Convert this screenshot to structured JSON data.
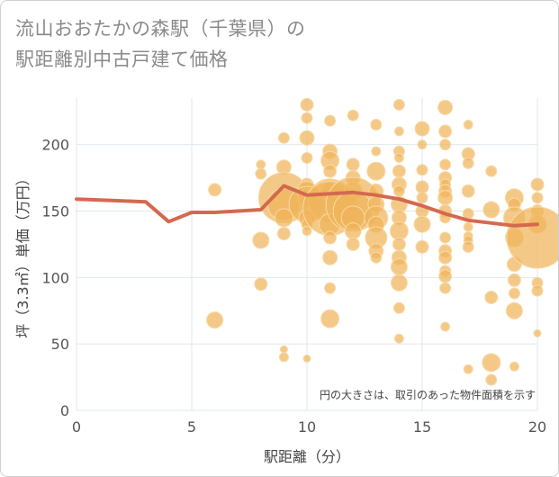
{
  "title": {
    "line1": "流山おおたかの森駅（千葉県）の",
    "line2": "駅距離別中古戸建て価格"
  },
  "note": "円の大きさは、取引のあった物件面積を示す",
  "colors": {
    "bubble": "#f0b45a",
    "bubble_stroke": "#f8d9a6",
    "line": "#d4694f",
    "plot_bg": "#ffffff",
    "grid": "#dfe7ee",
    "axis_text": "#555555"
  },
  "chart_data": {
    "type": "scatter",
    "xlabel": "駅距離（分）",
    "ylabel": "坪（3.3㎡）単価（万円）",
    "xlim": [
      0,
      20
    ],
    "ylim": [
      0,
      235
    ],
    "xticks": [
      0,
      5,
      10,
      15,
      20
    ],
    "yticks": [
      0,
      50,
      100,
      150,
      200
    ],
    "grid": true,
    "legend": "none",
    "series": [
      {
        "type": "line",
        "values": [
          [
            0,
            159
          ],
          [
            3,
            157
          ],
          [
            4,
            142
          ],
          [
            5,
            149
          ],
          [
            6,
            149
          ],
          [
            8,
            151
          ],
          [
            9,
            169
          ],
          [
            10,
            162
          ],
          [
            11,
            163
          ],
          [
            12,
            164
          ],
          [
            13,
            162
          ],
          [
            14,
            159
          ],
          [
            15,
            154
          ],
          [
            16,
            148
          ],
          [
            17,
            143
          ],
          [
            18,
            141
          ],
          [
            19,
            139
          ],
          [
            20,
            140
          ]
        ]
      },
      {
        "type": "bubble",
        "points": [
          [
            6,
            166,
            7
          ],
          [
            6,
            68,
            9
          ],
          [
            8,
            185,
            5
          ],
          [
            8,
            178,
            6
          ],
          [
            8,
            128,
            9
          ],
          [
            8,
            95,
            7
          ],
          [
            9,
            205,
            6
          ],
          [
            9,
            183,
            8
          ],
          [
            9,
            160,
            28
          ],
          [
            9,
            155,
            18
          ],
          [
            9,
            145,
            10
          ],
          [
            9,
            133,
            7
          ],
          [
            9,
            46,
            4
          ],
          [
            9,
            40,
            5
          ],
          [
            10,
            230,
            7
          ],
          [
            10,
            220,
            6
          ],
          [
            10,
            205,
            8
          ],
          [
            10,
            190,
            6
          ],
          [
            10,
            170,
            7
          ],
          [
            10,
            165,
            11
          ],
          [
            10,
            160,
            10
          ],
          [
            10,
            155,
            20
          ],
          [
            10,
            145,
            9
          ],
          [
            10,
            140,
            6
          ],
          [
            10,
            135,
            5
          ],
          [
            10,
            39,
            4
          ],
          [
            11,
            218,
            6
          ],
          [
            11,
            195,
            8
          ],
          [
            11,
            188,
            10
          ],
          [
            11,
            180,
            7
          ],
          [
            11,
            165,
            9
          ],
          [
            11,
            158,
            24
          ],
          [
            11,
            152,
            30
          ],
          [
            11,
            140,
            12
          ],
          [
            11,
            130,
            7
          ],
          [
            11,
            115,
            8
          ],
          [
            11,
            92,
            6
          ],
          [
            11,
            69,
            10
          ],
          [
            12,
            222,
            6
          ],
          [
            12,
            185,
            7
          ],
          [
            12,
            175,
            8
          ],
          [
            12,
            165,
            10
          ],
          [
            12,
            155,
            30
          ],
          [
            12,
            150,
            22
          ],
          [
            12,
            145,
            13
          ],
          [
            12,
            135,
            9
          ],
          [
            12,
            125,
            7
          ],
          [
            13,
            215,
            6
          ],
          [
            13,
            195,
            5
          ],
          [
            13,
            180,
            10
          ],
          [
            13,
            165,
            8
          ],
          [
            13,
            155,
            9
          ],
          [
            13,
            145,
            13
          ],
          [
            13,
            140,
            9
          ],
          [
            13,
            130,
            12
          ],
          [
            13,
            120,
            8
          ],
          [
            13,
            115,
            6
          ],
          [
            14,
            230,
            6
          ],
          [
            14,
            210,
            5
          ],
          [
            14,
            195,
            6
          ],
          [
            14,
            190,
            5
          ],
          [
            14,
            180,
            7
          ],
          [
            14,
            170,
            8
          ],
          [
            14,
            165,
            6
          ],
          [
            14,
            155,
            9
          ],
          [
            14,
            145,
            8
          ],
          [
            14,
            135,
            10
          ],
          [
            14,
            125,
            7
          ],
          [
            14,
            115,
            8
          ],
          [
            14,
            108,
            9
          ],
          [
            14,
            96,
            9
          ],
          [
            14,
            77,
            6
          ],
          [
            14,
            54,
            5
          ],
          [
            15,
            212,
            8
          ],
          [
            15,
            200,
            5
          ],
          [
            15,
            181,
            6
          ],
          [
            15,
            168,
            7
          ],
          [
            15,
            160,
            6
          ],
          [
            15,
            150,
            7
          ],
          [
            15,
            140,
            9
          ],
          [
            15,
            123,
            7
          ],
          [
            16,
            228,
            8
          ],
          [
            16,
            210,
            7
          ],
          [
            16,
            200,
            6
          ],
          [
            16,
            185,
            6
          ],
          [
            16,
            175,
            7
          ],
          [
            16,
            170,
            6
          ],
          [
            16,
            165,
            7
          ],
          [
            16,
            160,
            8
          ],
          [
            16,
            150,
            7
          ],
          [
            16,
            145,
            6
          ],
          [
            16,
            130,
            6
          ],
          [
            16,
            120,
            7
          ],
          [
            16,
            115,
            7
          ],
          [
            16,
            105,
            6
          ],
          [
            16,
            101,
            7
          ],
          [
            16,
            92,
            6
          ],
          [
            16,
            63,
            5
          ],
          [
            17,
            215,
            5
          ],
          [
            17,
            193,
            7
          ],
          [
            17,
            186,
            6
          ],
          [
            17,
            165,
            7
          ],
          [
            17,
            148,
            6
          ],
          [
            17,
            138,
            5
          ],
          [
            17,
            131,
            5
          ],
          [
            17,
            128,
            5
          ],
          [
            17,
            123,
            6
          ],
          [
            17,
            31,
            5
          ],
          [
            18,
            180,
            6
          ],
          [
            18,
            151,
            9
          ],
          [
            18,
            85,
            7
          ],
          [
            18,
            36,
            10
          ],
          [
            18,
            23,
            6
          ],
          [
            19,
            160,
            10
          ],
          [
            19,
            155,
            7
          ],
          [
            19,
            145,
            12
          ],
          [
            19,
            130,
            10
          ],
          [
            19,
            110,
            8
          ],
          [
            19,
            98,
            7
          ],
          [
            19,
            88,
            6
          ],
          [
            19,
            75,
            9
          ],
          [
            19,
            33,
            5
          ],
          [
            20,
            170,
            7
          ],
          [
            20,
            160,
            6
          ],
          [
            20,
            150,
            7
          ],
          [
            20,
            140,
            10
          ],
          [
            20,
            130,
            34
          ],
          [
            20,
            96,
            6
          ],
          [
            20,
            90,
            6
          ],
          [
            20,
            58,
            4
          ]
        ]
      }
    ]
  }
}
